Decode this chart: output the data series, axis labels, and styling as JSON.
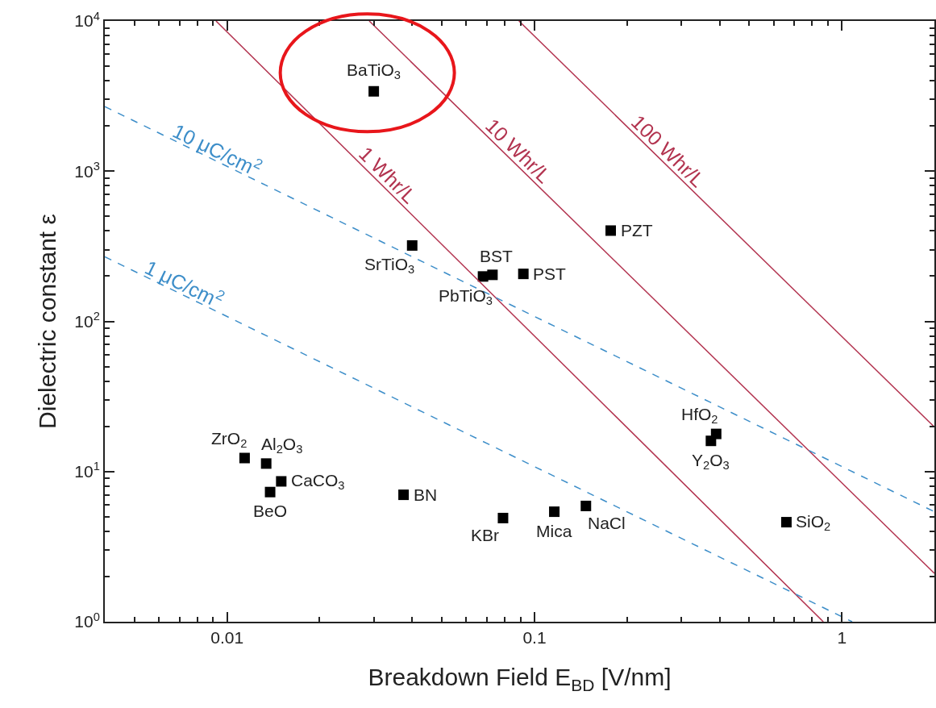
{
  "chart_data": {
    "type": "scatter",
    "xlabel": "Breakdown Field E$_{BD}$ [V/nm]",
    "ylabel": "Dielectric constant ε",
    "log": "xy",
    "annotations": [
      {
        "text": "BaTiO$_{3}$",
        "x": 0.03,
        "y": 3400
      },
      {
        "text": "SrTiO$_{3}$",
        "x": 0.04,
        "y": 320
      },
      {
        "text": "PbTiO$_{3}$",
        "x": 0.068,
        "y": 199
      },
      {
        "text": "BST",
        "x": 0.073,
        "y": 204
      },
      {
        "text": "PST",
        "x": 0.092,
        "y": 207
      },
      {
        "text": "PZT",
        "x": 0.177,
        "y": 402
      },
      {
        "text": "HfO$_{2}$",
        "x": 0.39,
        "y": 17.8
      },
      {
        "text": "Y$_{2}$O$_{3}$",
        "x": 0.375,
        "y": 16
      },
      {
        "text": "SiO$_{2}$",
        "x": 0.66,
        "y": 4.6
      },
      {
        "text": "NaCl",
        "x": 0.147,
        "y": 5.9
      },
      {
        "text": "Mica",
        "x": 0.116,
        "y": 5.4
      },
      {
        "text": "KBr",
        "x": 0.079,
        "y": 4.9
      },
      {
        "text": "BN",
        "x": 0.0375,
        "y": 7.0
      },
      {
        "text": "ZrO$_{2}$",
        "x": 0.0114,
        "y": 12.3
      },
      {
        "text": "Al$_{2}$O$_{3}$",
        "x": 0.0134,
        "y": 11.3
      },
      {
        "text": "CaCO$_{3}$",
        "x": 0.015,
        "y": 8.6
      },
      {
        "text": "BeO",
        "x": 0.0138,
        "y": 7.3
      }
    ],
    "xlim": [
      0.004,
      2
    ],
    "ylim": [
      1,
      10000
    ],
    "xticks": [
      {
        "value": 0.004,
        "label": null
      },
      {
        "value": 0.005,
        "label": null
      },
      {
        "value": 0.006,
        "label": null
      },
      {
        "value": 0.007,
        "label": null
      },
      {
        "value": 0.008,
        "label": null
      },
      {
        "value": 0.009,
        "label": null
      },
      0.01,
      {
        "value": 0.02,
        "label": null
      },
      {
        "value": 0.03,
        "label": null
      },
      {
        "value": 0.04,
        "label": null
      },
      {
        "value": 0.05,
        "label": null
      },
      {
        "value": 0.06,
        "label": null
      },
      {
        "value": 0.07,
        "label": null
      },
      {
        "value": 0.08,
        "label": null
      },
      {
        "value": 0.09,
        "label": null
      },
      0.1,
      {
        "value": 0.2,
        "label": null
      },
      {
        "value": 0.3,
        "label": null
      },
      {
        "value": 0.4,
        "label": null
      },
      {
        "value": 0.5,
        "label": null
      },
      {
        "value": 0.6,
        "label": null
      },
      {
        "value": 0.7,
        "label": null
      },
      {
        "value": 0.8,
        "label": null
      },
      {
        "value": 0.9,
        "label": null
      },
      1,
      {
        "value": 2,
        "label": null
      }
    ],
    "yticks": [
      {
        "value": 1,
        "label": "10$^{0}$"
      },
      {
        "value": 2,
        "label": null
      },
      {
        "value": 3,
        "label": null
      },
      {
        "value": 4,
        "label": null
      },
      {
        "value": 5,
        "label": null
      },
      {
        "value": 6,
        "label": null
      },
      {
        "value": 7,
        "label": null
      },
      {
        "value": 8,
        "label": null
      },
      {
        "value": 9,
        "label": null
      },
      {
        "value": 10,
        "label": "10$^{1}$"
      },
      {
        "value": 20,
        "label": null
      },
      {
        "value": 30,
        "label": null
      },
      {
        "value": 40,
        "label": null
      },
      {
        "value": 50,
        "label": null
      },
      {
        "value": 60,
        "label": null
      },
      {
        "value": 70,
        "label": null
      },
      {
        "value": 80,
        "label": null
      },
      {
        "value": 90,
        "label": null
      },
      {
        "value": 100,
        "label": "10$^{2}$"
      },
      {
        "value": 200,
        "label": null
      },
      {
        "value": 300,
        "label": null
      },
      {
        "value": 400,
        "label": null
      },
      {
        "value": 500,
        "label": null
      },
      {
        "value": 600,
        "label": null
      },
      {
        "value": 700,
        "label": null
      },
      {
        "value": 800,
        "label": null
      },
      {
        "value": 900,
        "label": null
      },
      {
        "value": 1000,
        "label": "10$^{3}$"
      },
      {
        "value": 2000,
        "label": null
      },
      {
        "value": 3000,
        "label": null
      },
      {
        "value": 4000,
        "label": null
      },
      {
        "value": 5000,
        "label": null
      },
      {
        "value": 6000,
        "label": null
      },
      {
        "value": 7000,
        "label": null
      },
      {
        "value": 8000,
        "label": null
      },
      {
        "value": 9000,
        "label": null
      },
      {
        "value": 10000,
        "label": "10$^{4}$"
      }
    ],
    "series": [
      {
        "color": "#000000",
        "marker": "square",
        "x": [
          0.03,
          0.04,
          0.068,
          0.073,
          0.092,
          0.177,
          0.39,
          0.375,
          0.66,
          0.147,
          0.116,
          0.079,
          0.0375,
          0.0114,
          0.0134,
          0.015,
          0.0138
        ],
        "values": [
          3400,
          320,
          199,
          204,
          207,
          402,
          17.8,
          16,
          4.6,
          5.9,
          5.4,
          4.9,
          7.0,
          12.3,
          11.3,
          8.6,
          7.3
        ]
      },
      {
        "type": "line",
        "name": "1 Whr/L",
        "color": "#b2334f",
        "line_style": "solid",
        "marker": "none",
        "x": [
          0.0092,
          0.87
        ],
        "values": [
          10000,
          1
        ]
      },
      {
        "type": "line",
        "name": "10 Whr/L",
        "color": "#b2334f",
        "line_style": "solid",
        "marker": "none",
        "x": [
          0.029,
          2
        ],
        "values": [
          10000,
          2.1
        ]
      },
      {
        "type": "line",
        "name": "100 Whr/L",
        "color": "#b2334f",
        "line_style": "solid",
        "marker": "none",
        "x": [
          0.089,
          2
        ],
        "values": [
          10000,
          19.8
        ]
      },
      {
        "type": "line",
        "name": "10 μC/cm$^{2}$",
        "color": "#3d8ec9",
        "line_style": "dashed",
        "marker": "none",
        "x": [
          0.004,
          2
        ],
        "values": [
          2690,
          5.4
        ]
      },
      {
        "type": "line",
        "name": "1 μC/cm$^{2}$",
        "color": "#3d8ec9",
        "line_style": "dashed",
        "marker": "none",
        "x": [
          0.004,
          1.08
        ],
        "values": [
          269,
          1
        ]
      }
    ]
  }
}
